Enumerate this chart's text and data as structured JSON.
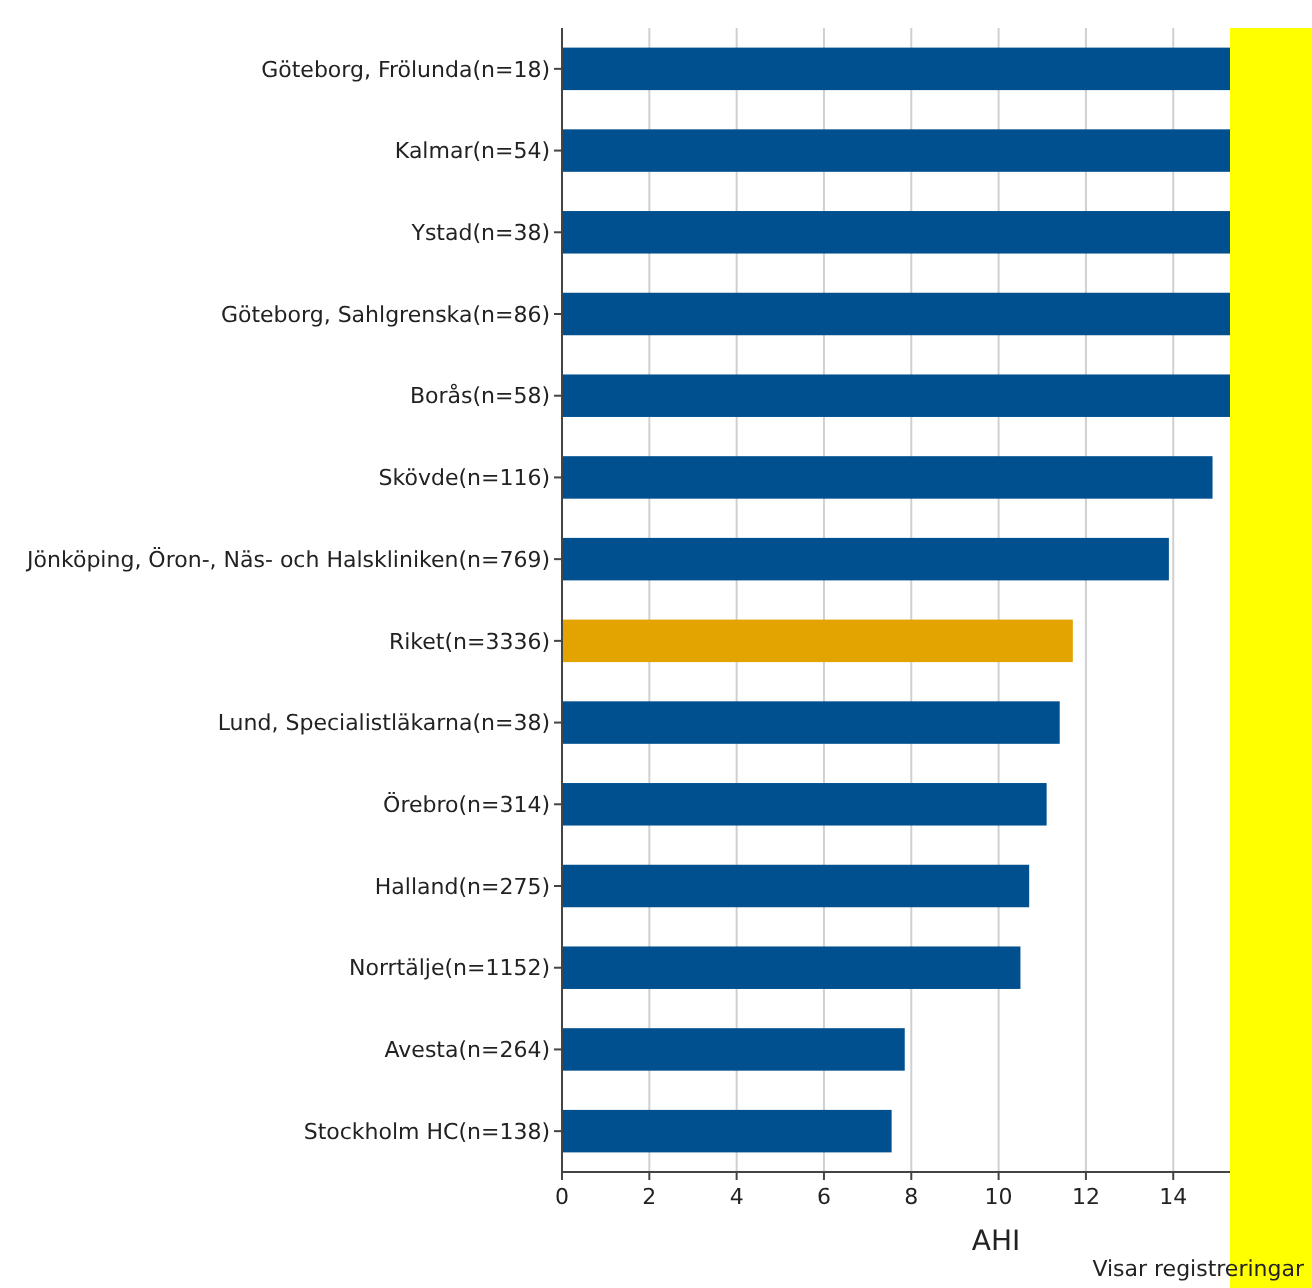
{
  "chart_data": {
    "type": "bar",
    "orientation": "horizontal",
    "xlabel": "AHI",
    "categories": [
      "Göteborg, Frölunda(n=18)",
      "Kalmar(n=54)",
      "Ystad(n=38)",
      "Göteborg, Sahlgrenska(n=86)",
      "Borås(n=58)",
      "Skövde(n=116)",
      "Jönköping, Öron-, Näs- och Halskliniken(n=769)",
      "Riket(n=3336)",
      "Lund, Specialistläkarna(n=38)",
      "Örebro(n=314)",
      "Halland(n=275)",
      "Norrtälje(n=1152)",
      "Avesta(n=264)",
      "Stockholm HC(n=138)"
    ],
    "values": [
      15.3,
      15.3,
      15.3,
      15.3,
      15.3,
      14.9,
      13.9,
      11.7,
      11.4,
      11.1,
      10.7,
      10.5,
      7.85,
      7.55
    ],
    "colors": [
      "#00508f",
      "#00508f",
      "#00508f",
      "#00508f",
      "#00508f",
      "#00508f",
      "#00508f",
      "#e3a300",
      "#00508f",
      "#00508f",
      "#00508f",
      "#00508f",
      "#00508f",
      "#00508f"
    ],
    "xlim": [
      0,
      15.3
    ],
    "xticks": [
      0,
      2,
      4,
      6,
      8,
      10,
      12,
      14
    ],
    "grid": "x",
    "annotations": [
      "Visar registreringar"
    ]
  }
}
